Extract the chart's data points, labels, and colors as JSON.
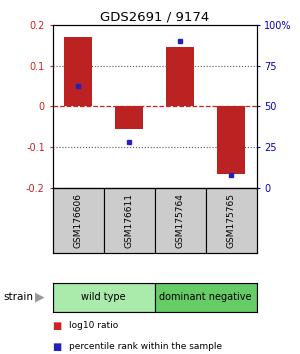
{
  "title": "GDS2691 / 9174",
  "samples": [
    "GSM176606",
    "GSM176611",
    "GSM175764",
    "GSM175765"
  ],
  "log10_ratio": [
    0.17,
    -0.055,
    0.145,
    -0.165
  ],
  "percentile_rank": [
    62.5,
    28.0,
    90.0,
    8.0
  ],
  "groups": [
    {
      "label": "wild type",
      "samples": [
        0,
        1
      ],
      "color": "#AAEAAA"
    },
    {
      "label": "dominant negative",
      "samples": [
        2,
        3
      ],
      "color": "#66CC66"
    }
  ],
  "bar_color": "#BB2222",
  "dot_color": "#2222BB",
  "ylim_left": [
    -0.2,
    0.2
  ],
  "ylim_right": [
    0,
    100
  ],
  "yticks_left": [
    -0.2,
    -0.1,
    0.0,
    0.1,
    0.2
  ],
  "ytick_labels_left": [
    "-0.2",
    "-0.1",
    "0",
    "0.1",
    "0.2"
  ],
  "yticks_right": [
    0,
    25,
    50,
    75,
    100
  ],
  "ytick_labels_right": [
    "0",
    "25",
    "50",
    "75",
    "100%"
  ],
  "zero_line_color": "#CC2222",
  "dotted_line_color": "#555555",
  "group_label": "strain",
  "legend_bar": "log10 ratio",
  "legend_dot": "percentile rank within the sample",
  "bar_width": 0.55,
  "sample_box_color": "#CCCCCC",
  "bar_color_legend": "#CC2222",
  "dot_color_legend": "#2222BB"
}
